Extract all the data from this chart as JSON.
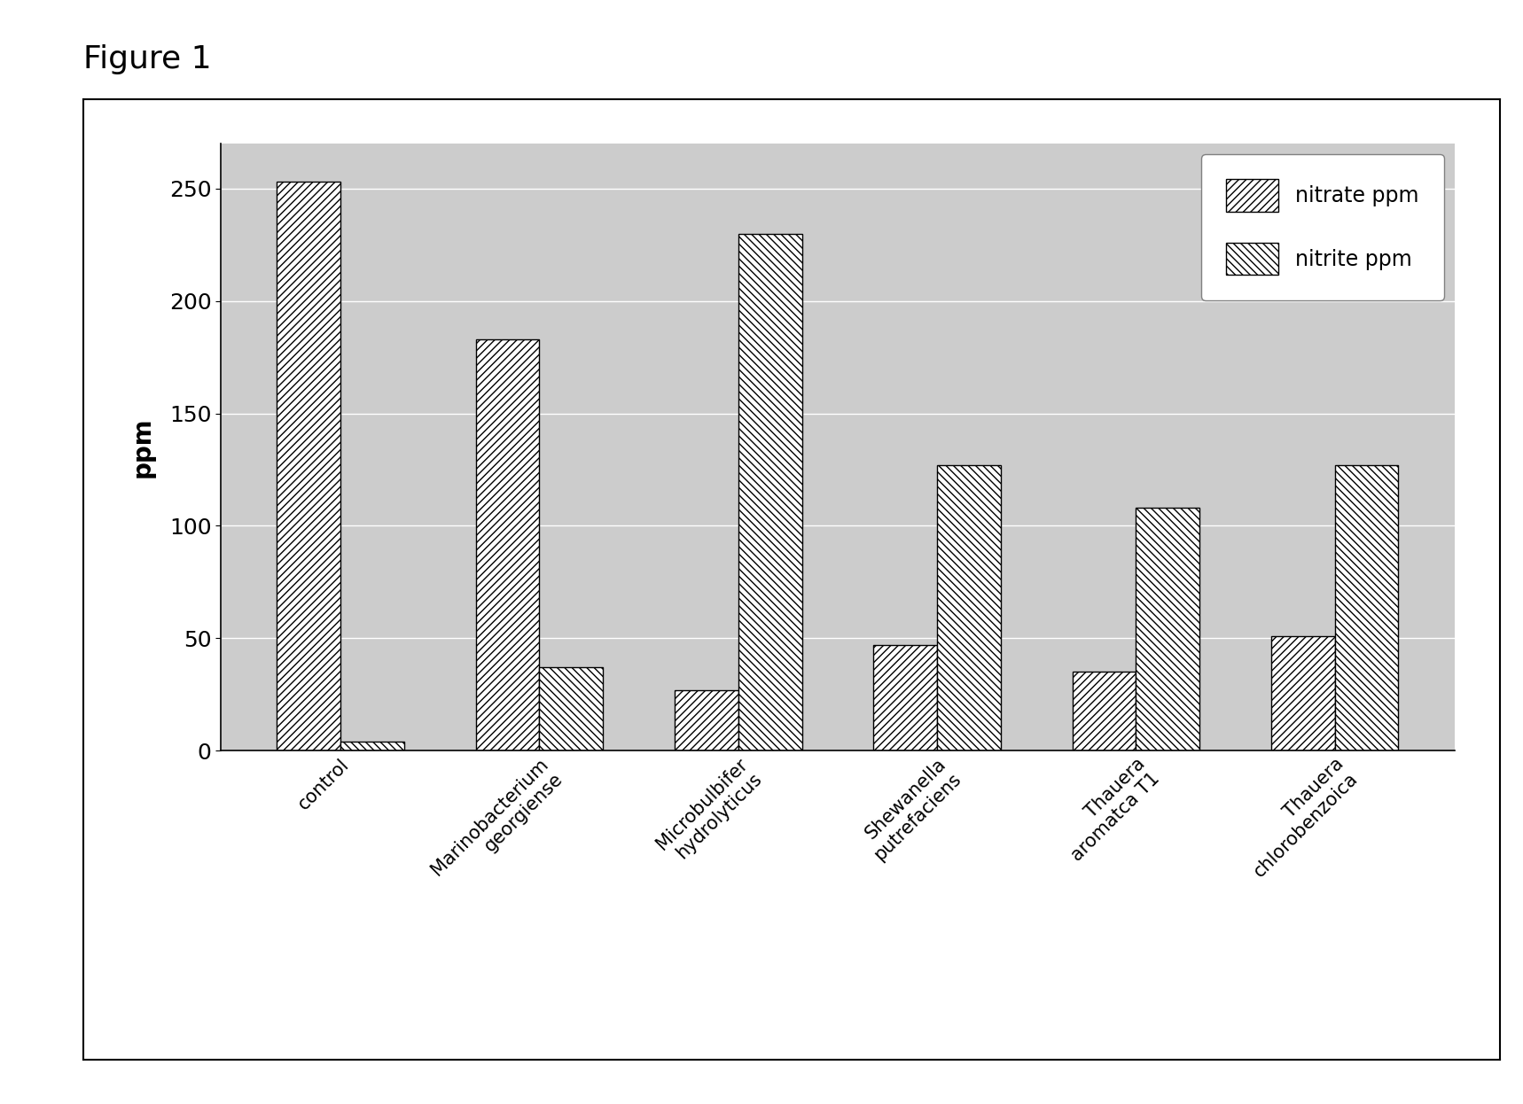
{
  "categories": [
    "control",
    "Marinobacterium\ngeorgiense",
    "Microbulbifer\nhydrolyticus",
    "Shewanella\nputrefaciens",
    "Thauera\naromatca T1",
    "Thauera\nchlorobenzoica"
  ],
  "nitrate": [
    253,
    183,
    27,
    47,
    35,
    51
  ],
  "nitrite": [
    4,
    37,
    230,
    127,
    108,
    127
  ],
  "ylabel": "ppm",
  "ylim": [
    0,
    270
  ],
  "yticks": [
    0,
    50,
    100,
    150,
    200,
    250
  ],
  "legend_nitrate": "nitrate ppm",
  "legend_nitrite": "nitrite ppm",
  "title": "Figure 1",
  "bar_width": 0.32,
  "background_color": "#c8c8c8",
  "figure_background": "#ffffff",
  "plot_box_background": "#c8c8c8"
}
